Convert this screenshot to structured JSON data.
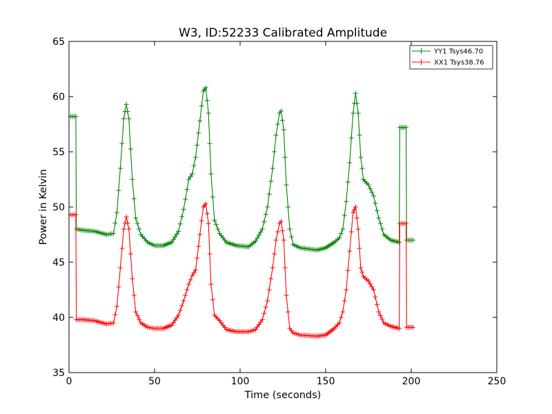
{
  "chart_data": {
    "type": "line",
    "title": "W3, ID:52233 Calibrated Amplitude",
    "xlabel": "Time (seconds)",
    "ylabel": "Power in Kelvin",
    "xlim": [
      0,
      250
    ],
    "ylim": [
      35,
      65
    ],
    "x_ticks": [
      "0",
      "50",
      "100",
      "150",
      "200",
      "250"
    ],
    "y_ticks": [
      "35",
      "40",
      "45",
      "50",
      "55",
      "60",
      "65"
    ],
    "grid": false,
    "legend_position": "top-right",
    "marker": "plus",
    "series": [
      {
        "name": "YY1 Tsys46.70",
        "color": "#008000",
        "points": [
          [
            1,
            58.2
          ],
          [
            4,
            58.2
          ],
          [
            4.3,
            48.0
          ],
          [
            8,
            47.9
          ],
          [
            15,
            47.8
          ],
          [
            22,
            47.5
          ],
          [
            26,
            47.6
          ],
          [
            28,
            49.5
          ],
          [
            30,
            53.5
          ],
          [
            32,
            58.0
          ],
          [
            33.5,
            59.3
          ],
          [
            35,
            58.0
          ],
          [
            37,
            52.5
          ],
          [
            39,
            49.0
          ],
          [
            42,
            47.5
          ],
          [
            46,
            46.8
          ],
          [
            50,
            46.5
          ],
          [
            55,
            46.5
          ],
          [
            60,
            46.8
          ],
          [
            64,
            47.8
          ],
          [
            67,
            49.8
          ],
          [
            70,
            52.5
          ],
          [
            72,
            53.0
          ],
          [
            74,
            54.5
          ],
          [
            76.5,
            57.8
          ],
          [
            78.5,
            60.5
          ],
          [
            80,
            60.8
          ],
          [
            81.5,
            58.5
          ],
          [
            83,
            53.0
          ],
          [
            85,
            48.8
          ],
          [
            88,
            47.6
          ],
          [
            92,
            46.8
          ],
          [
            98,
            46.5
          ],
          [
            105,
            46.4
          ],
          [
            109,
            46.9
          ],
          [
            113,
            48.0
          ],
          [
            116,
            50.0
          ],
          [
            119,
            53.5
          ],
          [
            121,
            56.5
          ],
          [
            123,
            58.5
          ],
          [
            124,
            58.7
          ],
          [
            125.5,
            57.0
          ],
          [
            127,
            52.0
          ],
          [
            129,
            48.0
          ],
          [
            131,
            46.6
          ],
          [
            135,
            46.3
          ],
          [
            145,
            46.1
          ],
          [
            150,
            46.3
          ],
          [
            155,
            46.8
          ],
          [
            158,
            47.2
          ],
          [
            160,
            48.0
          ],
          [
            162,
            50.5
          ],
          [
            164,
            54.0
          ],
          [
            166,
            58.5
          ],
          [
            167.5,
            60.3
          ],
          [
            169,
            58.5
          ],
          [
            170.5,
            54.5
          ],
          [
            172,
            52.5
          ],
          [
            175,
            52.0
          ],
          [
            178,
            51.0
          ],
          [
            181,
            49.0
          ],
          [
            184,
            47.5
          ],
          [
            188,
            47.0
          ],
          [
            193,
            46.8
          ],
          [
            193.3,
            57.2
          ],
          [
            197,
            57.2
          ],
          [
            197.3,
            47.0
          ],
          [
            201,
            47.0
          ]
        ]
      },
      {
        "name": "XX1 Tsys38.76",
        "color": "#ff0000",
        "points": [
          [
            1,
            49.3
          ],
          [
            4,
            49.3
          ],
          [
            4.3,
            39.8
          ],
          [
            8,
            39.8
          ],
          [
            15,
            39.7
          ],
          [
            22,
            39.4
          ],
          [
            26,
            39.5
          ],
          [
            28,
            41.0
          ],
          [
            30,
            44.5
          ],
          [
            32,
            48.0
          ],
          [
            33.5,
            49.1
          ],
          [
            35,
            48.0
          ],
          [
            37,
            43.5
          ],
          [
            39,
            40.5
          ],
          [
            42,
            39.5
          ],
          [
            46,
            39.1
          ],
          [
            50,
            39.0
          ],
          [
            55,
            39.0
          ],
          [
            60,
            39.3
          ],
          [
            64,
            40.2
          ],
          [
            67,
            41.5
          ],
          [
            70,
            43.0
          ],
          [
            72,
            43.8
          ],
          [
            74,
            44.3
          ],
          [
            76.5,
            47.5
          ],
          [
            78.5,
            50.0
          ],
          [
            80,
            50.3
          ],
          [
            81.5,
            48.5
          ],
          [
            83,
            43.0
          ],
          [
            85,
            40.2
          ],
          [
            88,
            39.7
          ],
          [
            92,
            38.9
          ],
          [
            98,
            38.7
          ],
          [
            105,
            38.7
          ],
          [
            109,
            38.9
          ],
          [
            113,
            39.8
          ],
          [
            116,
            41.5
          ],
          [
            119,
            44.5
          ],
          [
            121,
            47.0
          ],
          [
            123,
            48.5
          ],
          [
            124,
            48.7
          ],
          [
            125.5,
            47.0
          ],
          [
            127,
            42.0
          ],
          [
            129,
            39.0
          ],
          [
            131,
            38.6
          ],
          [
            135,
            38.4
          ],
          [
            145,
            38.3
          ],
          [
            150,
            38.4
          ],
          [
            155,
            39.0
          ],
          [
            158,
            39.5
          ],
          [
            160,
            40.5
          ],
          [
            162,
            42.5
          ],
          [
            164,
            46.0
          ],
          [
            166,
            49.5
          ],
          [
            167.5,
            50.0
          ],
          [
            169,
            48.0
          ],
          [
            170.5,
            44.5
          ],
          [
            172,
            43.7
          ],
          [
            175,
            43.3
          ],
          [
            178,
            42.5
          ],
          [
            181,
            40.5
          ],
          [
            184,
            39.5
          ],
          [
            188,
            39.2
          ],
          [
            193,
            39.0
          ],
          [
            193.3,
            48.5
          ],
          [
            197,
            48.5
          ],
          [
            197.3,
            39.1
          ],
          [
            201,
            39.1
          ]
        ]
      }
    ]
  }
}
